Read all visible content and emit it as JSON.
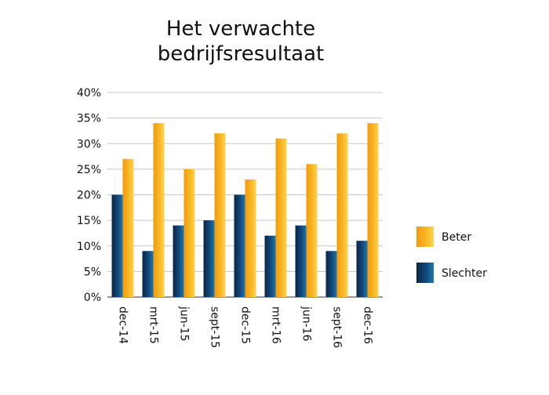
{
  "chart_data": {
    "type": "bar",
    "title_lines": [
      "Het verwachte",
      "bedrijfsresultaat"
    ],
    "categories": [
      "dec-14",
      "mrt-15",
      "jun-15",
      "sept-15",
      "dec-15",
      "mrt-16",
      "jun-16",
      "sept-16",
      "dec-16"
    ],
    "series": [
      {
        "name": "Slechter",
        "values": [
          20,
          9,
          14,
          15,
          20,
          12,
          14,
          9,
          11
        ]
      },
      {
        "name": "Beter",
        "values": [
          27,
          34,
          25,
          32,
          23,
          31,
          26,
          32,
          34
        ]
      }
    ],
    "yticks": [
      "0%",
      "5%",
      "10%",
      "15%",
      "20%",
      "25%",
      "30%",
      "35%",
      "40%"
    ],
    "ylim": [
      0,
      40
    ],
    "grid": true,
    "legend_position": "right",
    "legend_order": [
      "Beter",
      "Slechter"
    ],
    "colors": {
      "Slechter": {
        "dark": "#0c2344",
        "mid": "#12497a",
        "light": "#1b78b2"
      },
      "Beter": {
        "dark": "#f39a0a",
        "mid": "#f8b726",
        "light": "#ffd34d"
      }
    }
  }
}
